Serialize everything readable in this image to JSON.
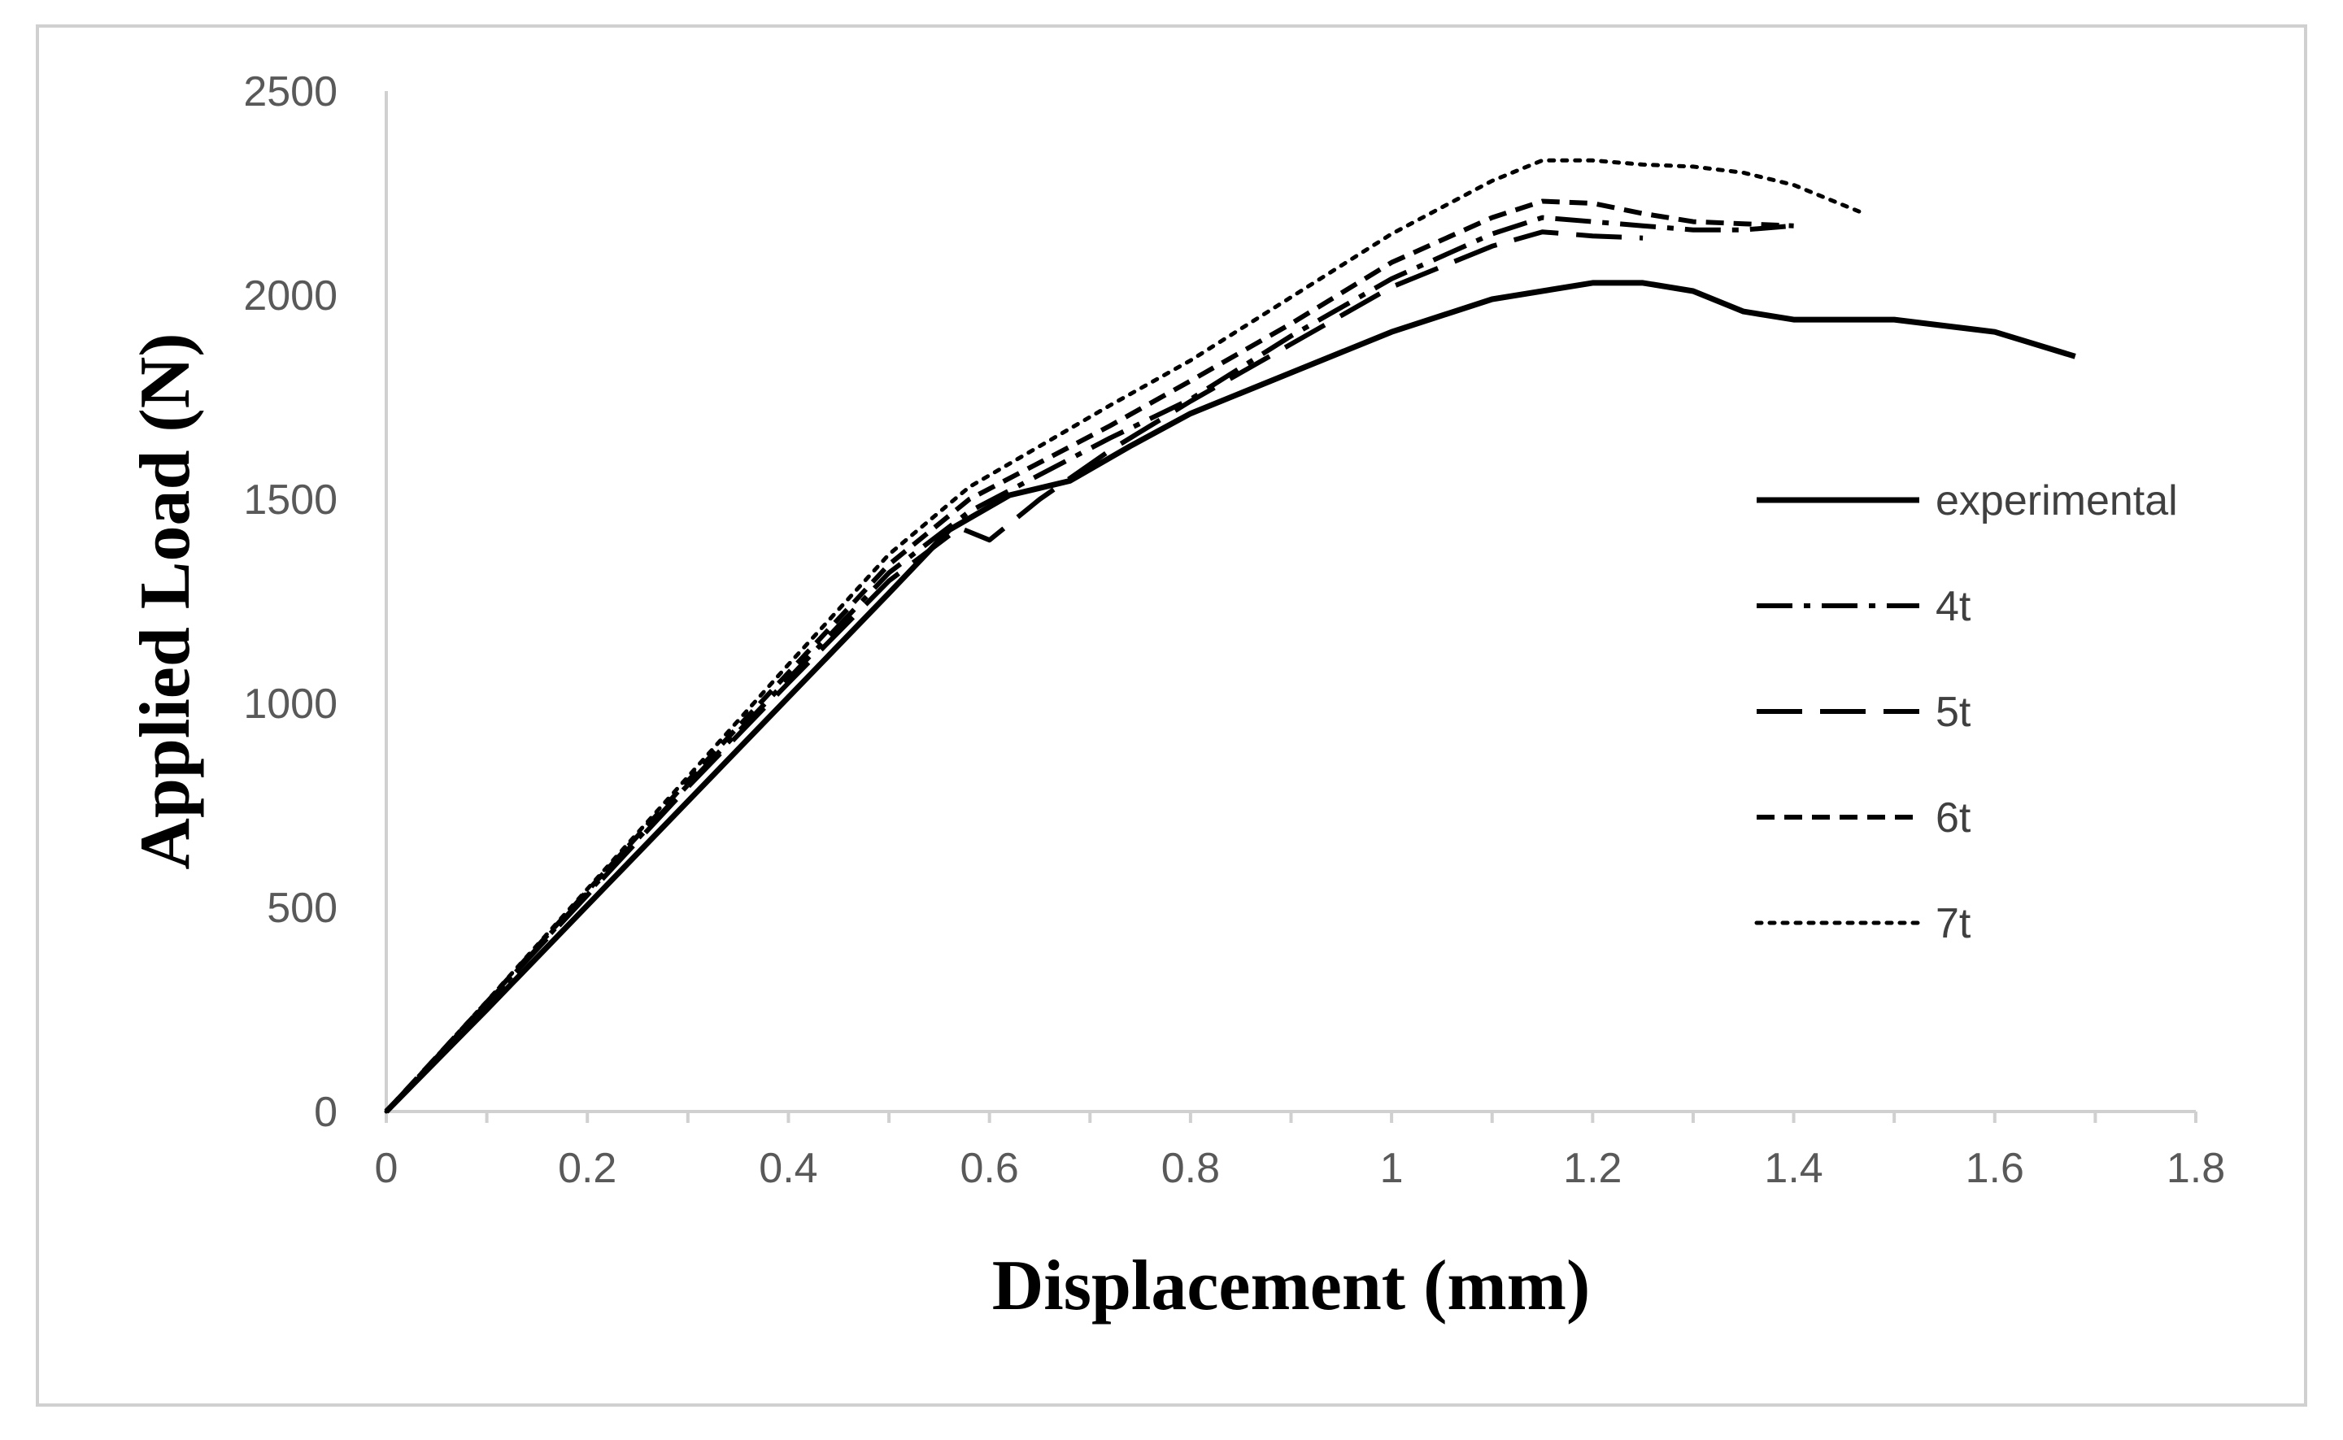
{
  "chart_data": {
    "type": "line",
    "title": "",
    "xlabel": "Displacement (mm)",
    "ylabel": "Applied Load (N)",
    "xlim": [
      0,
      1.8
    ],
    "ylim": [
      0,
      2500
    ],
    "x_ticks": [
      "0",
      "0.2",
      "0.4",
      "0.6",
      "0.8",
      "1",
      "1.2",
      "1.4",
      "1.6",
      "1.8"
    ],
    "y_ticks": [
      "0",
      "500",
      "1000",
      "1500",
      "2000",
      "2500"
    ],
    "grid": false,
    "legend_position": "right",
    "series": [
      {
        "name": "experimental",
        "style": "solid",
        "x": [
          0,
          0.1,
          0.2,
          0.3,
          0.4,
          0.5,
          0.56,
          0.62,
          0.68,
          0.74,
          0.8,
          0.9,
          1.0,
          1.1,
          1.2,
          1.25,
          1.3,
          1.35,
          1.4,
          1.5,
          1.6,
          1.68
        ],
        "y": [
          0,
          250,
          505,
          760,
          1015,
          1270,
          1425,
          1510,
          1545,
          1630,
          1710,
          1810,
          1910,
          1990,
          2030,
          2030,
          2010,
          1960,
          1940,
          1940,
          1910,
          1850
        ]
      },
      {
        "name": "4t",
        "style": "dashdot",
        "x": [
          0,
          0.1,
          0.2,
          0.3,
          0.4,
          0.5,
          0.58,
          0.65,
          0.72,
          0.8,
          0.9,
          1.0,
          1.1,
          1.15,
          1.2,
          1.25,
          1.3,
          1.35,
          1.4
        ],
        "y": [
          0,
          265,
          535,
          800,
          1060,
          1320,
          1470,
          1560,
          1650,
          1745,
          1900,
          2040,
          2150,
          2190,
          2180,
          2170,
          2160,
          2160,
          2170
        ]
      },
      {
        "name": "5t",
        "style": "longdash",
        "x": [
          0,
          0.1,
          0.2,
          0.3,
          0.4,
          0.5,
          0.57,
          0.6,
          0.65,
          0.72,
          0.8,
          0.9,
          1.0,
          1.1,
          1.15,
          1.2,
          1.25
        ],
        "y": [
          0,
          265,
          530,
          795,
          1050,
          1300,
          1430,
          1400,
          1500,
          1620,
          1740,
          1880,
          2020,
          2120,
          2155,
          2145,
          2140
        ]
      },
      {
        "name": "6t",
        "style": "dashed",
        "x": [
          0,
          0.1,
          0.2,
          0.3,
          0.4,
          0.5,
          0.58,
          0.65,
          0.72,
          0.8,
          0.9,
          1.0,
          1.1,
          1.15,
          1.2,
          1.25,
          1.3,
          1.35,
          1.4
        ],
        "y": [
          0,
          268,
          540,
          810,
          1075,
          1340,
          1500,
          1590,
          1680,
          1790,
          1930,
          2080,
          2190,
          2230,
          2225,
          2200,
          2180,
          2175,
          2170
        ]
      },
      {
        "name": "7t",
        "style": "dotted",
        "x": [
          0,
          0.1,
          0.2,
          0.3,
          0.4,
          0.5,
          0.58,
          0.65,
          0.72,
          0.8,
          0.9,
          1.0,
          1.1,
          1.15,
          1.2,
          1.25,
          1.3,
          1.35,
          1.4,
          1.45,
          1.47
        ],
        "y": [
          0,
          270,
          545,
          820,
          1095,
          1365,
          1530,
          1630,
          1730,
          1840,
          1995,
          2150,
          2280,
          2330,
          2330,
          2320,
          2315,
          2300,
          2270,
          2220,
          2200
        ]
      }
    ]
  }
}
